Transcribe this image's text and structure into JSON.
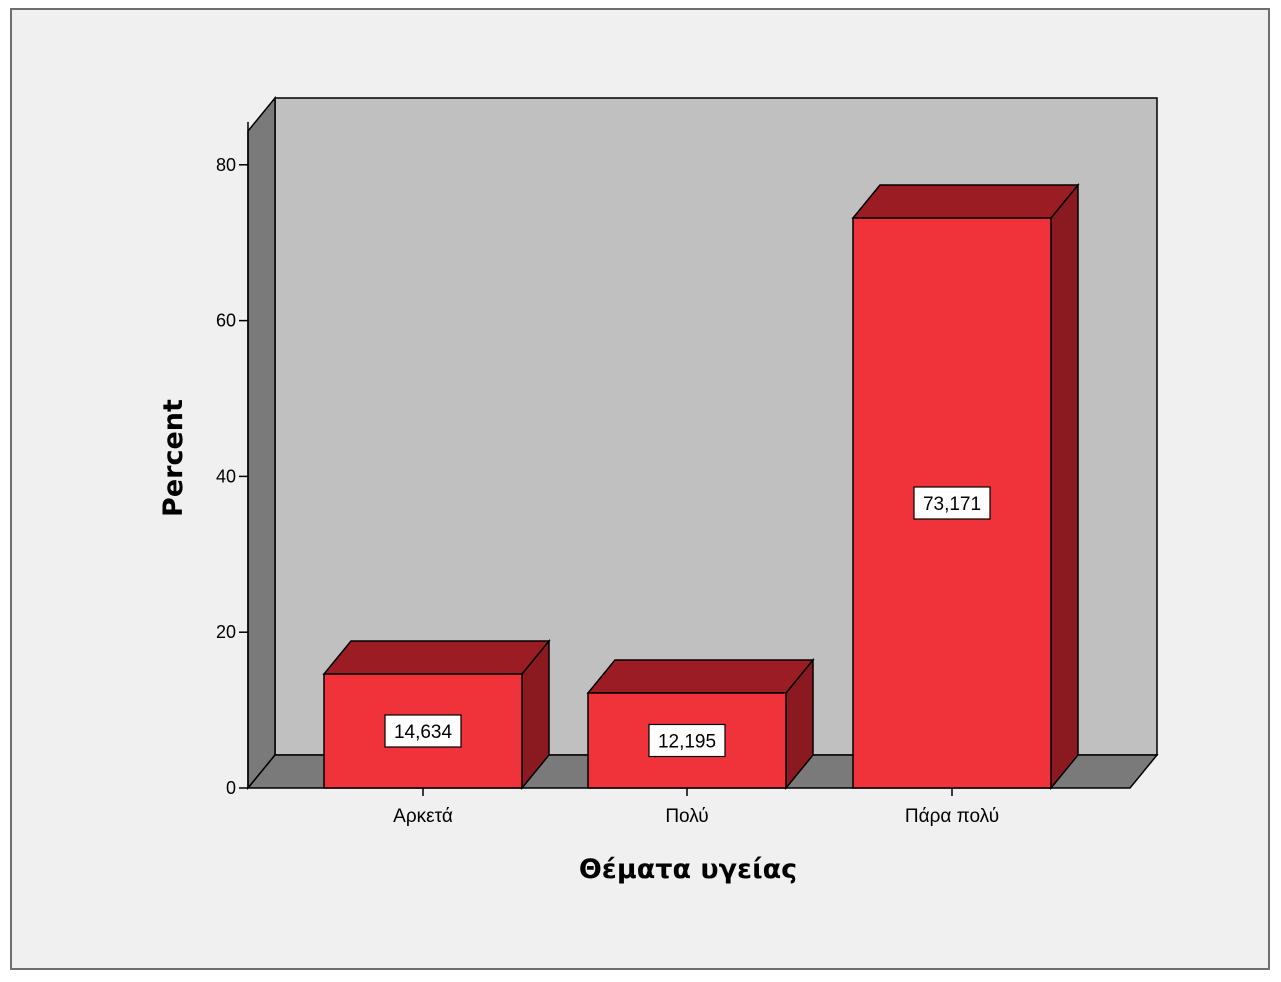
{
  "chart_data": {
    "type": "bar",
    "categories": [
      "Αρκετά",
      "Πολύ",
      "Πάρα πολύ"
    ],
    "values": [
      14.634,
      12.195,
      73.171
    ],
    "data_labels": [
      "14,634",
      "12,195",
      "73,171"
    ],
    "xlabel": "Θέματα υγείας",
    "ylabel": "Percent",
    "ylim": [
      0,
      85
    ],
    "yticks": [
      0,
      20,
      40,
      60,
      80
    ],
    "ytick_labels": [
      "0",
      "20",
      "40",
      "60",
      "80"
    ],
    "grid": false,
    "legend": "none",
    "style": "3d"
  },
  "colors": {
    "bar_front": "#f0323a",
    "bar_top": "#9b1c22",
    "bar_side": "#8a1a1f",
    "back_wall": "#c0c0c0",
    "side_wall": "#7a7a7a",
    "floor": "#7a7a7a",
    "background": "#f0f0f0"
  }
}
